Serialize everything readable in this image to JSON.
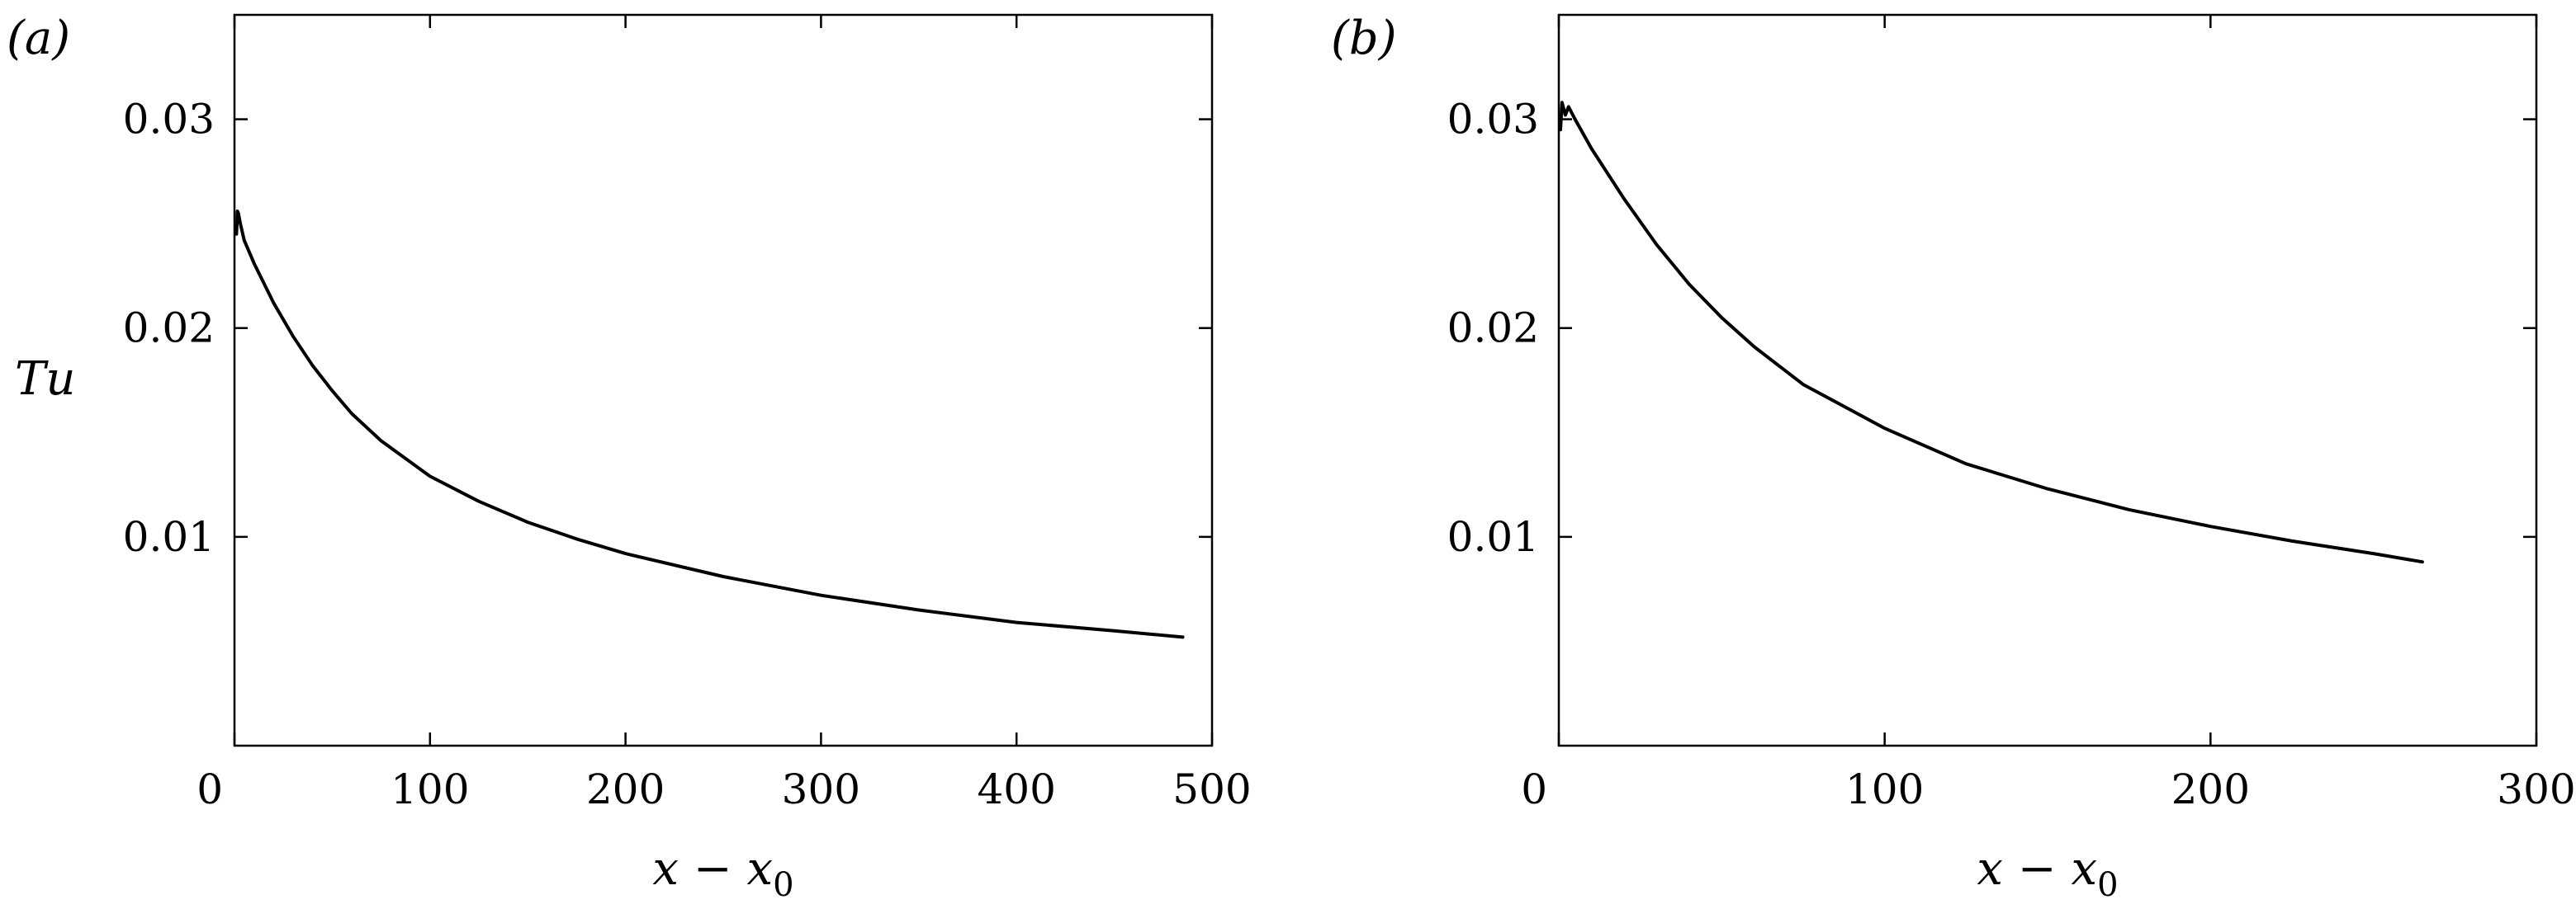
{
  "chart_data": [
    {
      "type": "line",
      "panel_label": "(a)",
      "xlabel": "x − x",
      "xlabel_subscript": "0",
      "ylabel": "Tu",
      "xlim": [
        0,
        500
      ],
      "ylim": [
        0,
        0.035
      ],
      "x_ticks": [
        0,
        100,
        200,
        300,
        400,
        500
      ],
      "y_ticks": [
        0.01,
        0.02,
        0.03
      ],
      "x_tick_labels": [
        "0",
        "100",
        "200",
        "300",
        "400",
        "500"
      ],
      "y_tick_labels": [
        "0.01",
        "0.02",
        "0.03"
      ],
      "grid": false,
      "series": [
        {
          "x": [
            1,
            1.5,
            2,
            3,
            5,
            10,
            20,
            30,
            40,
            50,
            60,
            75,
            100,
            125,
            150,
            175,
            200,
            250,
            300,
            350,
            400,
            450,
            485
          ],
          "y": [
            0.0245,
            0.0256,
            0.0255,
            0.025,
            0.0242,
            0.0231,
            0.0212,
            0.0196,
            0.0182,
            0.017,
            0.0159,
            0.0146,
            0.0129,
            0.0117,
            0.0107,
            0.0099,
            0.0092,
            0.0081,
            0.0072,
            0.0065,
            0.0059,
            0.0055,
            0.0052
          ]
        }
      ]
    },
    {
      "type": "line",
      "panel_label": "(b)",
      "xlabel": "x − x",
      "xlabel_subscript": "0",
      "ylabel": "",
      "xlim": [
        0,
        300
      ],
      "ylim": [
        0,
        0.035
      ],
      "x_ticks": [
        0,
        100,
        200,
        300
      ],
      "y_ticks": [
        0.01,
        0.02,
        0.03
      ],
      "x_tick_labels": [
        "0",
        "100",
        "200",
        "300"
      ],
      "y_tick_labels": [
        "0.01",
        "0.02",
        "0.03"
      ],
      "grid": false,
      "series": [
        {
          "x": [
            0.5,
            1,
            2,
            3,
            5,
            10,
            20,
            30,
            40,
            50,
            60,
            75,
            100,
            125,
            150,
            175,
            200,
            225,
            250,
            265
          ],
          "y": [
            0.0295,
            0.0308,
            0.0302,
            0.0306,
            0.03,
            0.0286,
            0.0262,
            0.024,
            0.0221,
            0.0205,
            0.0191,
            0.0173,
            0.0152,
            0.0135,
            0.0123,
            0.0113,
            0.0105,
            0.0098,
            0.0092,
            0.0088
          ]
        }
      ]
    }
  ]
}
